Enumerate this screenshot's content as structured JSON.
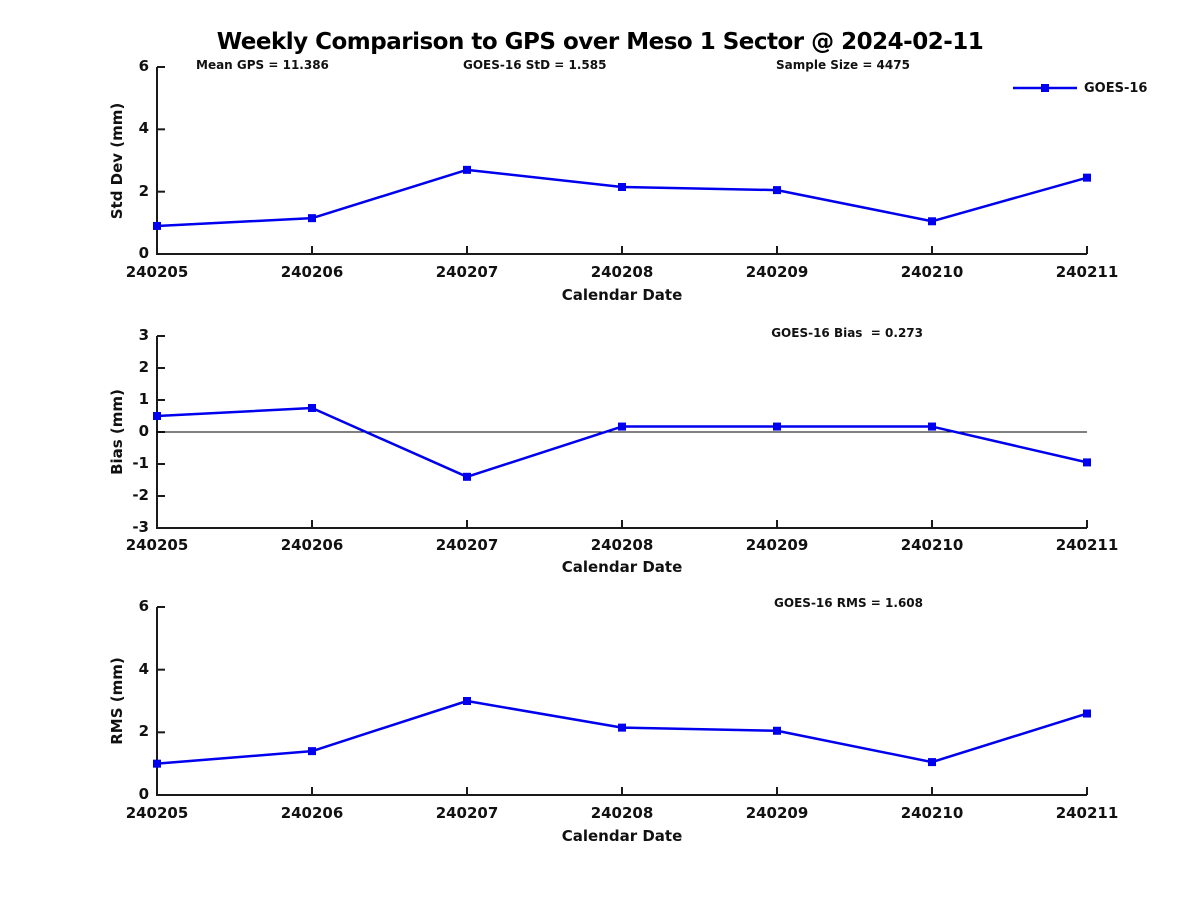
{
  "title": "Weekly Comparison to GPS over Meso 1 Sector @ 2024-02-11",
  "legend": {
    "label": "GOES-16"
  },
  "colors": {
    "series": "#0000EE",
    "axis": "#1A1A1A"
  },
  "chart_data": [
    {
      "type": "line",
      "xlabel": "Calendar Date",
      "ylabel": "Std Dev (mm)",
      "categories": [
        "240205",
        "240206",
        "240207",
        "240208",
        "240209",
        "240210",
        "240211"
      ],
      "series": [
        {
          "name": "GOES-16",
          "marker": "square",
          "values": [
            0.9,
            1.15,
            2.7,
            2.15,
            2.05,
            1.05,
            2.45
          ]
        }
      ],
      "ylim": [
        0,
        6
      ],
      "yticks": [
        0,
        2,
        4,
        6
      ],
      "grid": false,
      "zero_line": false,
      "legend_position": "top-right",
      "annotations": [
        "Mean GPS = 11.386",
        "GOES-16 StD = 1.585",
        "Sample Size = 4475"
      ]
    },
    {
      "type": "line",
      "xlabel": "Calendar Date",
      "ylabel": "Bias (mm)",
      "categories": [
        "240205",
        "240206",
        "240207",
        "240208",
        "240209",
        "240210",
        "240211"
      ],
      "series": [
        {
          "name": "GOES-16",
          "marker": "square",
          "values": [
            0.5,
            0.75,
            -1.4,
            0.17,
            0.17,
            0.17,
            -0.95
          ]
        }
      ],
      "ylim": [
        -3,
        3
      ],
      "yticks": [
        -3,
        -2,
        -1,
        0,
        1,
        2,
        3
      ],
      "grid": false,
      "zero_line": true,
      "annotations": [
        "GOES-16 Bias  = 0.273"
      ]
    },
    {
      "type": "line",
      "xlabel": "Calendar Date",
      "ylabel": "RMS (mm)",
      "categories": [
        "240205",
        "240206",
        "240207",
        "240208",
        "240209",
        "240210",
        "240211"
      ],
      "series": [
        {
          "name": "GOES-16",
          "marker": "square",
          "values": [
            1.0,
            1.4,
            3.0,
            2.15,
            2.05,
            1.05,
            2.6
          ]
        }
      ],
      "ylim": [
        0,
        6
      ],
      "yticks": [
        0,
        2,
        4,
        6
      ],
      "grid": false,
      "zero_line": false,
      "annotations": [
        "GOES-16 RMS = 1.608"
      ]
    }
  ]
}
